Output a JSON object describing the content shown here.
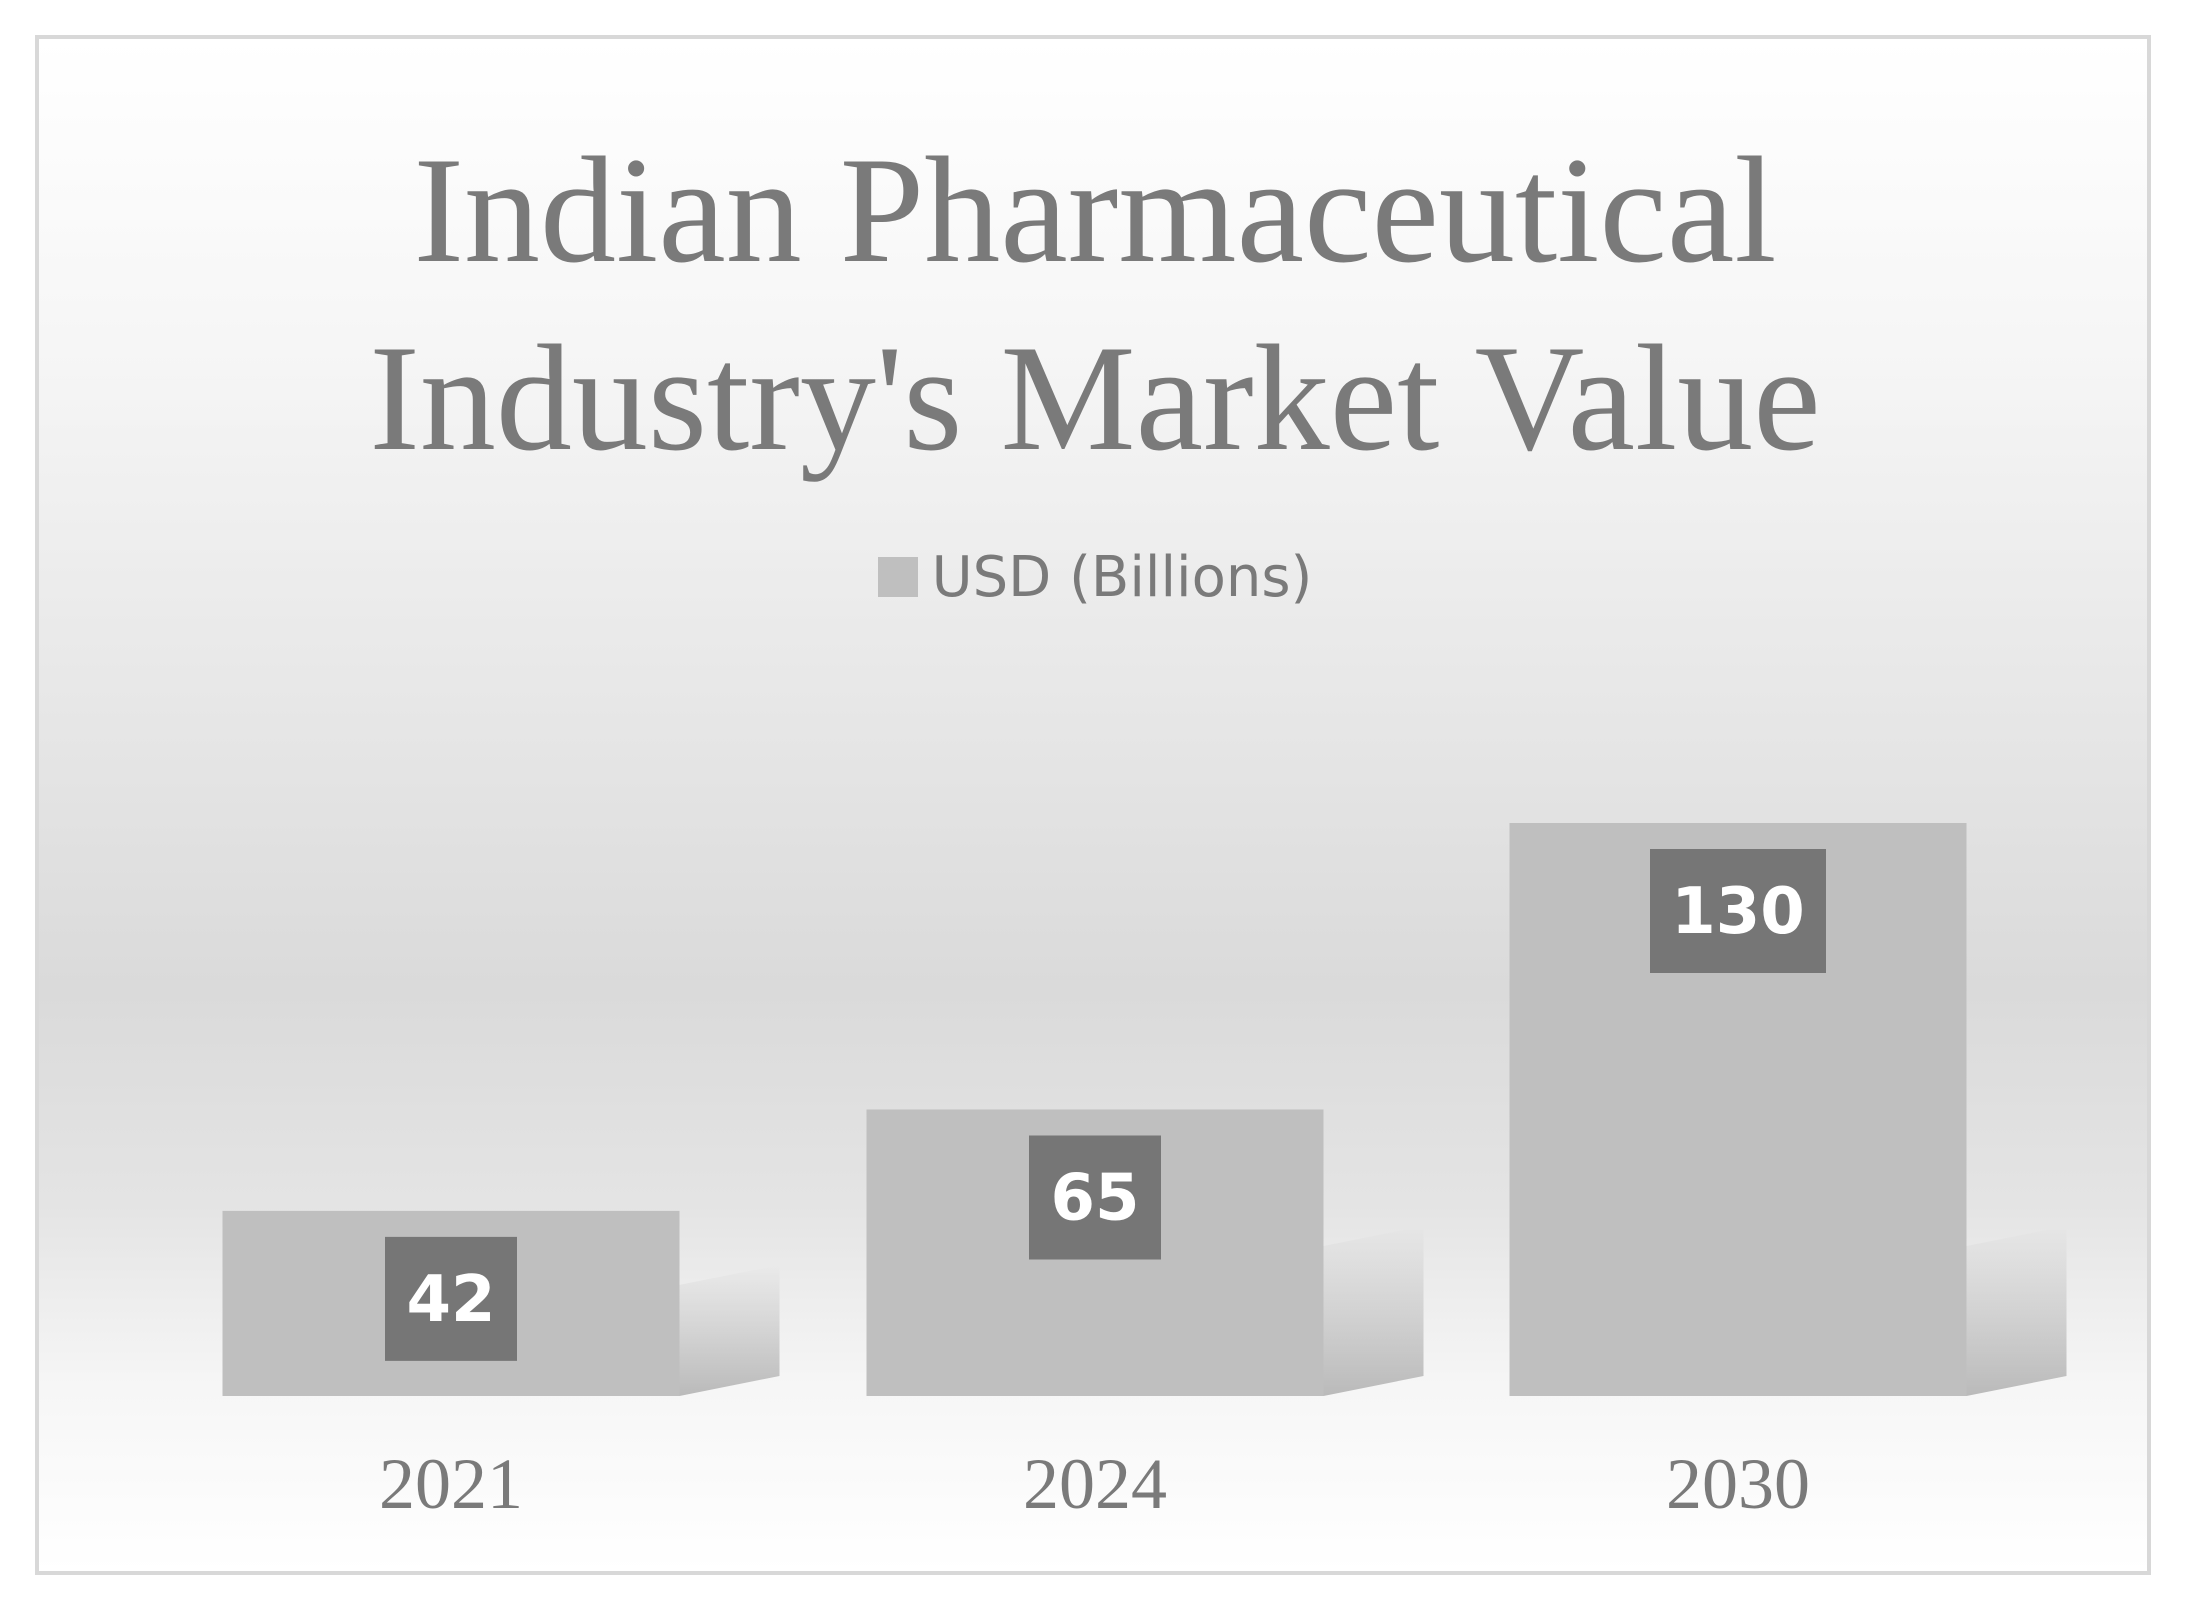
{
  "chart_data": {
    "type": "bar",
    "title": [
      "Indian Pharmaceutical",
      "Industry's Market Value"
    ],
    "categories": [
      "2021",
      "2024",
      "2030"
    ],
    "series": [
      {
        "name": "USD (Billions)",
        "values": [
          42,
          65,
          130
        ]
      }
    ],
    "data_labels": [
      "42",
      "65",
      "130"
    ],
    "ylim": [
      0,
      130
    ],
    "grid": false,
    "legend_position": "top",
    "colors": {
      "bar": "#bfbfbf",
      "label_box": "#767676",
      "label_text": "#ffffff",
      "text": "#7a7a7a"
    }
  }
}
